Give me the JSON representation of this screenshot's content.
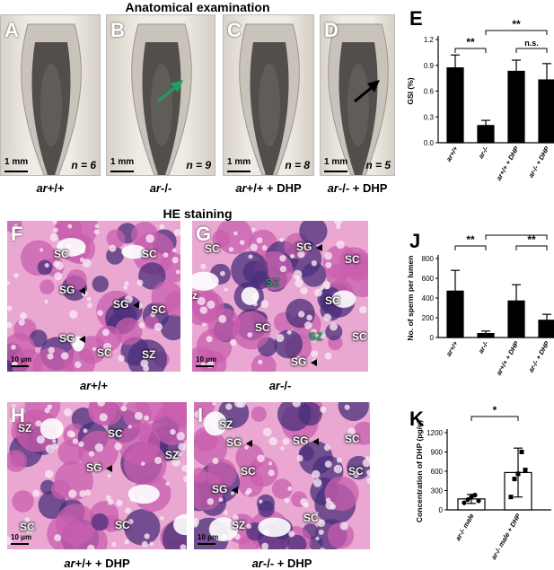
{
  "top_title": "Anatomical examination",
  "he_title": "HE staining",
  "anat_panels": [
    {
      "letter": "A",
      "n": "n = 6",
      "scale": "1 mm",
      "caption_g": "ar",
      "caption_rest": "+/+",
      "arrow": "none"
    },
    {
      "letter": "B",
      "n": "n = 9",
      "scale": "1 mm",
      "caption_g": "ar",
      "caption_rest": "-/-",
      "arrow": "green"
    },
    {
      "letter": "C",
      "n": "n = 8",
      "scale": "1 mm",
      "caption_g": "ar",
      "caption_rest": "+/+ + DHP",
      "arrow": "none"
    },
    {
      "letter": "D",
      "n": "n = 5",
      "scale": "1 mm",
      "caption_g": "ar",
      "caption_rest": "-/- + DHP",
      "arrow": "black"
    }
  ],
  "he_panels": [
    {
      "letter": "F",
      "scale": "10 μm",
      "caption_g": "ar",
      "caption_rest": "+/+"
    },
    {
      "letter": "G",
      "scale": "10 μm",
      "caption_g": "ar",
      "caption_rest": "-/-"
    },
    {
      "letter": "H",
      "scale": "10 μm",
      "caption_g": "ar",
      "caption_rest": "+/+ + DHP"
    },
    {
      "letter": "I",
      "scale": "10 μm",
      "caption_g": "ar",
      "caption_rest": "-/- + DHP"
    }
  ],
  "tissue_labels": {
    "sc": "SC",
    "sg": "SG",
    "sz": "SZ",
    "z": "z"
  },
  "chart_data": [
    {
      "panel": "E",
      "type": "bar",
      "categories": [
        "ar+/+",
        "ar-/-",
        "ar+/+ + DHP",
        "ar-/- + DHP"
      ],
      "values": [
        0.87,
        0.2,
        0.83,
        0.73
      ],
      "errors": [
        0.15,
        0.06,
        0.13,
        0.19
      ],
      "ylabel": "GSI (%)",
      "yticks": [
        "0.0",
        "0.3",
        "0.6",
        "0.9",
        "1.2"
      ],
      "ylim": [
        0,
        1.2
      ],
      "significance": [
        {
          "from": 0,
          "to": 1,
          "label": "**"
        },
        {
          "from": 1,
          "to": 3,
          "label": "**"
        },
        {
          "from": 2,
          "to": 3,
          "label": "n.s."
        }
      ]
    },
    {
      "panel": "J",
      "type": "bar",
      "categories": [
        "ar+/+",
        "ar-/-",
        "ar+/+ + DHP",
        "ar-/- + DHP"
      ],
      "values": [
        470,
        40,
        370,
        175
      ],
      "errors": [
        210,
        25,
        165,
        60
      ],
      "ylabel": "No. of sperm per lumen",
      "yticks": [
        "0",
        "200",
        "400",
        "600",
        "800"
      ],
      "ylim": [
        0,
        800
      ],
      "significance": [
        {
          "from": 0,
          "to": 1,
          "label": "**"
        },
        {
          "from": 1,
          "to": 3,
          "label": "**"
        },
        {
          "from": 2,
          "to": 3,
          "label": "**"
        }
      ]
    },
    {
      "panel": "K",
      "type": "bar",
      "categories": [
        "ar-/- male",
        "ar-/- male + DHP"
      ],
      "values": [
        170,
        580
      ],
      "errors": [
        70,
        380
      ],
      "points": [
        [
          110,
          160,
          200,
          230,
          140
        ],
        [
          200,
          480,
          560,
          900,
          620
        ]
      ],
      "ylabel": "Concentration of DHP (pg/g)",
      "yticks": [
        "0",
        "300",
        "600",
        "900",
        "1200"
      ],
      "ylim": [
        0,
        1200
      ],
      "significance": [
        {
          "from": 0,
          "to": 1,
          "label": "*"
        }
      ]
    }
  ],
  "colors": {
    "bar": "#000000",
    "arrow_green": "#1aa35c",
    "he_pink": "#e48fc4",
    "he_purple": "#4a2f7a"
  }
}
